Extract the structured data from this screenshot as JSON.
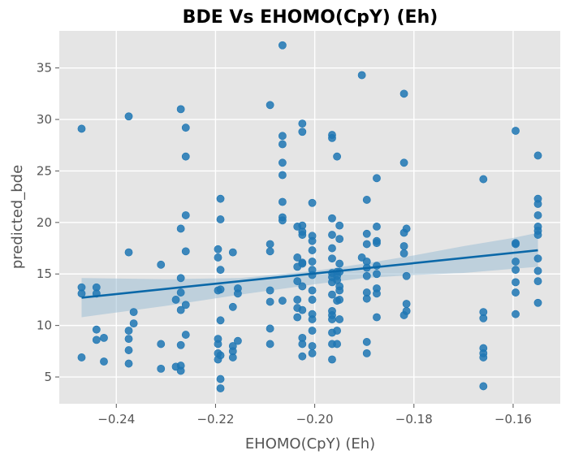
{
  "chart_data": {
    "type": "scatter",
    "title": "BDE Vs EHOMO(CpY) (Eh)",
    "xlabel": "EHOMO(CpY) (Eh)",
    "ylabel": "predicted_bde",
    "xlim": [
      -0.2515,
      -0.1505
    ],
    "ylim": [
      2.4,
      38.6
    ],
    "xticks": [
      -0.24,
      -0.22,
      -0.2,
      -0.18,
      -0.16
    ],
    "xtick_labels": [
      "−0.24",
      "−0.22",
      "−0.20",
      "−0.18",
      "−0.16"
    ],
    "yticks": [
      5,
      10,
      15,
      20,
      25,
      30,
      35
    ],
    "ytick_labels": [
      "5",
      "10",
      "15",
      "20",
      "25",
      "30",
      "35"
    ],
    "grid": true,
    "colors": {
      "points": "#1f77b4",
      "line": "#0b68a8",
      "band": "#9fbfd6",
      "background": "#e5e5e5",
      "grid": "#ffffff"
    },
    "regression": {
      "x": [
        -0.247,
        -0.155
      ],
      "y": [
        12.7,
        17.3
      ],
      "ci_x": [
        -0.247,
        -0.23,
        -0.215,
        -0.2,
        -0.19,
        -0.18,
        -0.17,
        -0.16,
        -0.155
      ],
      "ci_lower": [
        10.8,
        11.9,
        13.0,
        14.0,
        14.6,
        14.9,
        15.1,
        15.5,
        15.7
      ],
      "ci_upper": [
        14.6,
        14.5,
        14.6,
        15.3,
        16.0,
        16.8,
        17.7,
        18.5,
        19.0
      ]
    },
    "points": [
      {
        "x": -0.247,
        "y": 29.1
      },
      {
        "x": -0.247,
        "y": 13.7
      },
      {
        "x": -0.247,
        "y": 13.1
      },
      {
        "x": -0.247,
        "y": 6.9
      },
      {
        "x": -0.244,
        "y": 13.7
      },
      {
        "x": -0.244,
        "y": 13.1
      },
      {
        "x": -0.244,
        "y": 9.6
      },
      {
        "x": -0.244,
        "y": 8.6
      },
      {
        "x": -0.2425,
        "y": 8.8
      },
      {
        "x": -0.2425,
        "y": 6.5
      },
      {
        "x": -0.2375,
        "y": 30.3
      },
      {
        "x": -0.2375,
        "y": 17.1
      },
      {
        "x": -0.2375,
        "y": 9.5
      },
      {
        "x": -0.2375,
        "y": 8.7
      },
      {
        "x": -0.2375,
        "y": 7.6
      },
      {
        "x": -0.2375,
        "y": 6.3
      },
      {
        "x": -0.2365,
        "y": 11.3
      },
      {
        "x": -0.2365,
        "y": 10.2
      },
      {
        "x": -0.231,
        "y": 15.9
      },
      {
        "x": -0.231,
        "y": 8.2
      },
      {
        "x": -0.231,
        "y": 5.8
      },
      {
        "x": -0.228,
        "y": 12.5
      },
      {
        "x": -0.228,
        "y": 6.0
      },
      {
        "x": -0.227,
        "y": 31.0
      },
      {
        "x": -0.227,
        "y": 19.4
      },
      {
        "x": -0.227,
        "y": 14.6
      },
      {
        "x": -0.227,
        "y": 13.2
      },
      {
        "x": -0.227,
        "y": 11.5
      },
      {
        "x": -0.227,
        "y": 8.1
      },
      {
        "x": -0.227,
        "y": 6.1
      },
      {
        "x": -0.227,
        "y": 5.6
      },
      {
        "x": -0.226,
        "y": 29.2
      },
      {
        "x": -0.226,
        "y": 26.4
      },
      {
        "x": -0.226,
        "y": 20.7
      },
      {
        "x": -0.226,
        "y": 17.2
      },
      {
        "x": -0.226,
        "y": 12.0
      },
      {
        "x": -0.226,
        "y": 9.1
      },
      {
        "x": -0.2195,
        "y": 17.4
      },
      {
        "x": -0.2195,
        "y": 16.6
      },
      {
        "x": -0.2195,
        "y": 13.4
      },
      {
        "x": -0.2195,
        "y": 8.7
      },
      {
        "x": -0.2195,
        "y": 8.2
      },
      {
        "x": -0.2195,
        "y": 7.3
      },
      {
        "x": -0.2195,
        "y": 6.7
      },
      {
        "x": -0.219,
        "y": 22.3
      },
      {
        "x": -0.219,
        "y": 20.3
      },
      {
        "x": -0.219,
        "y": 15.4
      },
      {
        "x": -0.219,
        "y": 13.5
      },
      {
        "x": -0.219,
        "y": 10.5
      },
      {
        "x": -0.219,
        "y": 7.1
      },
      {
        "x": -0.219,
        "y": 4.8
      },
      {
        "x": -0.219,
        "y": 3.9
      },
      {
        "x": -0.2165,
        "y": 17.1
      },
      {
        "x": -0.2165,
        "y": 11.8
      },
      {
        "x": -0.2165,
        "y": 8.0
      },
      {
        "x": -0.2165,
        "y": 7.5
      },
      {
        "x": -0.2165,
        "y": 6.9
      },
      {
        "x": -0.2155,
        "y": 13.6
      },
      {
        "x": -0.2155,
        "y": 13.1
      },
      {
        "x": -0.2155,
        "y": 8.5
      },
      {
        "x": -0.209,
        "y": 31.4
      },
      {
        "x": -0.209,
        "y": 17.9
      },
      {
        "x": -0.209,
        "y": 17.2
      },
      {
        "x": -0.209,
        "y": 13.4
      },
      {
        "x": -0.209,
        "y": 12.3
      },
      {
        "x": -0.209,
        "y": 9.7
      },
      {
        "x": -0.209,
        "y": 8.2
      },
      {
        "x": -0.2065,
        "y": 37.2
      },
      {
        "x": -0.2065,
        "y": 28.4
      },
      {
        "x": -0.2065,
        "y": 27.6
      },
      {
        "x": -0.2065,
        "y": 25.8
      },
      {
        "x": -0.2065,
        "y": 24.6
      },
      {
        "x": -0.2065,
        "y": 22.0
      },
      {
        "x": -0.2065,
        "y": 20.5
      },
      {
        "x": -0.2065,
        "y": 20.2
      },
      {
        "x": -0.2065,
        "y": 12.4
      },
      {
        "x": -0.2035,
        "y": 19.6
      },
      {
        "x": -0.2035,
        "y": 16.6
      },
      {
        "x": -0.2035,
        "y": 15.7
      },
      {
        "x": -0.2035,
        "y": 14.3
      },
      {
        "x": -0.2035,
        "y": 12.5
      },
      {
        "x": -0.2035,
        "y": 11.7
      },
      {
        "x": -0.2035,
        "y": 10.8
      },
      {
        "x": -0.2025,
        "y": 29.6
      },
      {
        "x": -0.2025,
        "y": 28.8
      },
      {
        "x": -0.2025,
        "y": 19.7
      },
      {
        "x": -0.2025,
        "y": 19.1
      },
      {
        "x": -0.2025,
        "y": 18.8
      },
      {
        "x": -0.2025,
        "y": 16.1
      },
      {
        "x": -0.2025,
        "y": 16.0
      },
      {
        "x": -0.2025,
        "y": 13.8
      },
      {
        "x": -0.2025,
        "y": 11.5
      },
      {
        "x": -0.2025,
        "y": 8.8
      },
      {
        "x": -0.2025,
        "y": 8.2
      },
      {
        "x": -0.2025,
        "y": 7.0
      },
      {
        "x": -0.2005,
        "y": 21.9
      },
      {
        "x": -0.2005,
        "y": 18.7
      },
      {
        "x": -0.2005,
        "y": 18.2
      },
      {
        "x": -0.2005,
        "y": 17.3
      },
      {
        "x": -0.2005,
        "y": 16.2
      },
      {
        "x": -0.2005,
        "y": 15.4
      },
      {
        "x": -0.2005,
        "y": 14.9
      },
      {
        "x": -0.2005,
        "y": 13.4
      },
      {
        "x": -0.2005,
        "y": 12.5
      },
      {
        "x": -0.2005,
        "y": 11.1
      },
      {
        "x": -0.2005,
        "y": 10.6
      },
      {
        "x": -0.2005,
        "y": 9.5
      },
      {
        "x": -0.2005,
        "y": 8.0
      },
      {
        "x": -0.2005,
        "y": 7.3
      },
      {
        "x": -0.1965,
        "y": 28.5
      },
      {
        "x": -0.1965,
        "y": 28.2
      },
      {
        "x": -0.1965,
        "y": 20.4
      },
      {
        "x": -0.1965,
        "y": 18.8
      },
      {
        "x": -0.1965,
        "y": 17.5
      },
      {
        "x": -0.1965,
        "y": 16.5
      },
      {
        "x": -0.1965,
        "y": 15.1
      },
      {
        "x": -0.1965,
        "y": 14.7
      },
      {
        "x": -0.1965,
        "y": 14.2
      },
      {
        "x": -0.1965,
        "y": 13.0
      },
      {
        "x": -0.1965,
        "y": 11.4
      },
      {
        "x": -0.1965,
        "y": 11.0
      },
      {
        "x": -0.1965,
        "y": 10.6
      },
      {
        "x": -0.1965,
        "y": 9.3
      },
      {
        "x": -0.1965,
        "y": 8.2
      },
      {
        "x": -0.1965,
        "y": 6.7
      },
      {
        "x": -0.1955,
        "y": 26.4
      },
      {
        "x": -0.1955,
        "y": 15.2
      },
      {
        "x": -0.1955,
        "y": 14.8
      },
      {
        "x": -0.1955,
        "y": 14.4
      },
      {
        "x": -0.1955,
        "y": 12.4
      },
      {
        "x": -0.1955,
        "y": 9.5
      },
      {
        "x": -0.1955,
        "y": 8.2
      },
      {
        "x": -0.195,
        "y": 19.7
      },
      {
        "x": -0.195,
        "y": 18.4
      },
      {
        "x": -0.195,
        "y": 16.0
      },
      {
        "x": -0.195,
        "y": 15.2
      },
      {
        "x": -0.195,
        "y": 13.8
      },
      {
        "x": -0.195,
        "y": 13.4
      },
      {
        "x": -0.195,
        "y": 12.5
      },
      {
        "x": -0.195,
        "y": 10.6
      },
      {
        "x": -0.1905,
        "y": 34.3
      },
      {
        "x": -0.1905,
        "y": 16.6
      },
      {
        "x": -0.1895,
        "y": 22.2
      },
      {
        "x": -0.1895,
        "y": 18.9
      },
      {
        "x": -0.1895,
        "y": 17.9
      },
      {
        "x": -0.1895,
        "y": 16.2
      },
      {
        "x": -0.1895,
        "y": 15.6
      },
      {
        "x": -0.1895,
        "y": 14.8
      },
      {
        "x": -0.1895,
        "y": 13.2
      },
      {
        "x": -0.1895,
        "y": 12.6
      },
      {
        "x": -0.1895,
        "y": 8.4
      },
      {
        "x": -0.1895,
        "y": 7.3
      },
      {
        "x": -0.1875,
        "y": 24.3
      },
      {
        "x": -0.1875,
        "y": 19.6
      },
      {
        "x": -0.1875,
        "y": 18.2
      },
      {
        "x": -0.1875,
        "y": 18.0
      },
      {
        "x": -0.1875,
        "y": 15.8
      },
      {
        "x": -0.1875,
        "y": 15.0
      },
      {
        "x": -0.1875,
        "y": 13.6
      },
      {
        "x": -0.1875,
        "y": 13.1
      },
      {
        "x": -0.1875,
        "y": 10.8
      },
      {
        "x": -0.182,
        "y": 32.5
      },
      {
        "x": -0.182,
        "y": 25.8
      },
      {
        "x": -0.182,
        "y": 19.0
      },
      {
        "x": -0.182,
        "y": 17.7
      },
      {
        "x": -0.182,
        "y": 17.0
      },
      {
        "x": -0.182,
        "y": 11.0
      },
      {
        "x": -0.1815,
        "y": 19.4
      },
      {
        "x": -0.1815,
        "y": 14.8
      },
      {
        "x": -0.1815,
        "y": 12.1
      },
      {
        "x": -0.1815,
        "y": 11.4
      },
      {
        "x": -0.166,
        "y": 24.2
      },
      {
        "x": -0.166,
        "y": 11.3
      },
      {
        "x": -0.166,
        "y": 10.7
      },
      {
        "x": -0.166,
        "y": 7.8
      },
      {
        "x": -0.166,
        "y": 7.3
      },
      {
        "x": -0.166,
        "y": 6.9
      },
      {
        "x": -0.166,
        "y": 4.1
      },
      {
        "x": -0.1595,
        "y": 28.9
      },
      {
        "x": -0.1595,
        "y": 18.0
      },
      {
        "x": -0.1595,
        "y": 17.9
      },
      {
        "x": -0.1595,
        "y": 16.2
      },
      {
        "x": -0.1595,
        "y": 15.4
      },
      {
        "x": -0.1595,
        "y": 14.2
      },
      {
        "x": -0.1595,
        "y": 13.2
      },
      {
        "x": -0.1595,
        "y": 11.1
      },
      {
        "x": -0.155,
        "y": 26.5
      },
      {
        "x": -0.155,
        "y": 22.3
      },
      {
        "x": -0.155,
        "y": 21.8
      },
      {
        "x": -0.155,
        "y": 20.7
      },
      {
        "x": -0.155,
        "y": 19.6
      },
      {
        "x": -0.155,
        "y": 19.2
      },
      {
        "x": -0.155,
        "y": 18.8
      },
      {
        "x": -0.155,
        "y": 16.5
      },
      {
        "x": -0.155,
        "y": 15.3
      },
      {
        "x": -0.155,
        "y": 14.3
      },
      {
        "x": -0.155,
        "y": 12.2
      }
    ]
  }
}
